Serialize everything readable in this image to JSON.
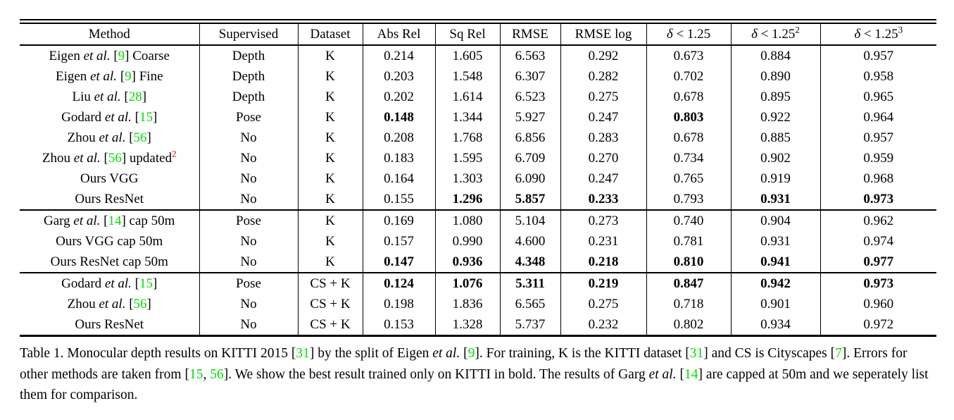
{
  "colors": {
    "background": "#ffffff",
    "text": "#000000",
    "rule": "#000000",
    "citation_green": "#00dd00",
    "footnote_red": "#ee0000"
  },
  "table": {
    "columns": [
      {
        "segments": [
          {
            "text": "Method"
          }
        ]
      },
      {
        "segments": [
          {
            "text": "Supervised"
          }
        ]
      },
      {
        "segments": [
          {
            "text": "Dataset"
          }
        ]
      },
      {
        "segments": [
          {
            "text": "Abs Rel"
          }
        ]
      },
      {
        "segments": [
          {
            "text": "Sq Rel"
          }
        ]
      },
      {
        "segments": [
          {
            "text": "RMSE"
          }
        ]
      },
      {
        "segments": [
          {
            "text": "RMSE log"
          }
        ]
      },
      {
        "segments": [
          {
            "text": "δ",
            "italic": true
          },
          {
            "text": " < 1.25"
          }
        ]
      },
      {
        "segments": [
          {
            "text": "δ",
            "italic": true
          },
          {
            "text": " < 1.25"
          },
          {
            "text": "2",
            "sup": true
          }
        ]
      },
      {
        "segments": [
          {
            "text": "δ",
            "italic": true
          },
          {
            "text": " < 1.25"
          },
          {
            "text": "3",
            "sup": true
          }
        ]
      }
    ],
    "sections": [
      {
        "rows": [
          {
            "method": [
              {
                "text": "Eigen "
              },
              {
                "text": "et al.",
                "italic": true
              },
              {
                "text": " ["
              },
              {
                "text": "9",
                "cite": true
              },
              {
                "text": "] Coarse"
              }
            ],
            "supervised": "Depth",
            "dataset": "K",
            "values": [
              "0.214",
              "1.605",
              "6.563",
              "0.292",
              "0.673",
              "0.884",
              "0.957"
            ],
            "bold": [
              false,
              false,
              false,
              false,
              false,
              false,
              false
            ]
          },
          {
            "method": [
              {
                "text": "Eigen "
              },
              {
                "text": "et al.",
                "italic": true
              },
              {
                "text": " ["
              },
              {
                "text": "9",
                "cite": true
              },
              {
                "text": "] Fine"
              }
            ],
            "supervised": "Depth",
            "dataset": "K",
            "values": [
              "0.203",
              "1.548",
              "6.307",
              "0.282",
              "0.702",
              "0.890",
              "0.958"
            ],
            "bold": [
              false,
              false,
              false,
              false,
              false,
              false,
              false
            ]
          },
          {
            "method": [
              {
                "text": "Liu "
              },
              {
                "text": "et al.",
                "italic": true
              },
              {
                "text": " ["
              },
              {
                "text": "28",
                "cite": true
              },
              {
                "text": "]"
              }
            ],
            "supervised": "Depth",
            "dataset": "K",
            "values": [
              "0.202",
              "1.614",
              "6.523",
              "0.275",
              "0.678",
              "0.895",
              "0.965"
            ],
            "bold": [
              false,
              false,
              false,
              false,
              false,
              false,
              false
            ]
          },
          {
            "method": [
              {
                "text": "Godard "
              },
              {
                "text": "et al.",
                "italic": true
              },
              {
                "text": " ["
              },
              {
                "text": "15",
                "cite": true
              },
              {
                "text": "]"
              }
            ],
            "supervised": "Pose",
            "dataset": "K",
            "values": [
              "0.148",
              "1.344",
              "5.927",
              "0.247",
              "0.803",
              "0.922",
              "0.964"
            ],
            "bold": [
              true,
              false,
              false,
              false,
              true,
              false,
              false
            ]
          },
          {
            "method": [
              {
                "text": "Zhou "
              },
              {
                "text": "et al.",
                "italic": true
              },
              {
                "text": " ["
              },
              {
                "text": "56",
                "cite": true
              },
              {
                "text": "]"
              }
            ],
            "supervised": "No",
            "dataset": "K",
            "values": [
              "0.208",
              "1.768",
              "6.856",
              "0.283",
              "0.678",
              "0.885",
              "0.957"
            ],
            "bold": [
              false,
              false,
              false,
              false,
              false,
              false,
              false
            ]
          },
          {
            "method": [
              {
                "text": "Zhou "
              },
              {
                "text": "et al.",
                "italic": true
              },
              {
                "text": " ["
              },
              {
                "text": "56",
                "cite": true
              },
              {
                "text": "] updated"
              },
              {
                "text": "2",
                "sup": true,
                "red": true
              }
            ],
            "supervised": "No",
            "dataset": "K",
            "values": [
              "0.183",
              "1.595",
              "6.709",
              "0.270",
              "0.734",
              "0.902",
              "0.959"
            ],
            "bold": [
              false,
              false,
              false,
              false,
              false,
              false,
              false
            ]
          },
          {
            "method": [
              {
                "text": "Ours VGG"
              }
            ],
            "supervised": "No",
            "dataset": "K",
            "values": [
              "0.164",
              "1.303",
              "6.090",
              "0.247",
              "0.765",
              "0.919",
              "0.968"
            ],
            "bold": [
              false,
              false,
              false,
              false,
              false,
              false,
              false
            ]
          },
          {
            "method": [
              {
                "text": "Ours ResNet"
              }
            ],
            "supervised": "No",
            "dataset": "K",
            "values": [
              "0.155",
              "1.296",
              "5.857",
              "0.233",
              "0.793",
              "0.931",
              "0.973"
            ],
            "bold": [
              false,
              true,
              true,
              true,
              false,
              true,
              true
            ]
          }
        ]
      },
      {
        "rows": [
          {
            "method": [
              {
                "text": "Garg "
              },
              {
                "text": "et al.",
                "italic": true
              },
              {
                "text": " ["
              },
              {
                "text": "14",
                "cite": true
              },
              {
                "text": "] cap 50m"
              }
            ],
            "supervised": "Pose",
            "dataset": "K",
            "values": [
              "0.169",
              "1.080",
              "5.104",
              "0.273",
              "0.740",
              "0.904",
              "0.962"
            ],
            "bold": [
              false,
              false,
              false,
              false,
              false,
              false,
              false
            ]
          },
          {
            "method": [
              {
                "text": "Ours VGG cap 50m"
              }
            ],
            "supervised": "No",
            "dataset": "K",
            "values": [
              "0.157",
              "0.990",
              "4.600",
              "0.231",
              "0.781",
              "0.931",
              "0.974"
            ],
            "bold": [
              false,
              false,
              false,
              false,
              false,
              false,
              false
            ]
          },
          {
            "method": [
              {
                "text": "Ours ResNet cap 50m"
              }
            ],
            "supervised": "No",
            "dataset": "K",
            "values": [
              "0.147",
              "0.936",
              "4.348",
              "0.218",
              "0.810",
              "0.941",
              "0.977"
            ],
            "bold": [
              true,
              true,
              true,
              true,
              true,
              true,
              true
            ]
          }
        ]
      },
      {
        "rows": [
          {
            "method": [
              {
                "text": "Godard "
              },
              {
                "text": "et al.",
                "italic": true
              },
              {
                "text": " ["
              },
              {
                "text": "15",
                "cite": true
              },
              {
                "text": "]"
              }
            ],
            "supervised": "Pose",
            "dataset": "CS + K",
            "values": [
              "0.124",
              "1.076",
              "5.311",
              "0.219",
              "0.847",
              "0.942",
              "0.973"
            ],
            "bold": [
              true,
              true,
              true,
              true,
              true,
              true,
              true
            ]
          },
          {
            "method": [
              {
                "text": "Zhou "
              },
              {
                "text": "et al.",
                "italic": true
              },
              {
                "text": " ["
              },
              {
                "text": "56",
                "cite": true
              },
              {
                "text": "]"
              }
            ],
            "supervised": "No",
            "dataset": "CS + K",
            "values": [
              "0.198",
              "1.836",
              "6.565",
              "0.275",
              "0.718",
              "0.901",
              "0.960"
            ],
            "bold": [
              false,
              false,
              false,
              false,
              false,
              false,
              false
            ]
          },
          {
            "method": [
              {
                "text": "Ours ResNet"
              }
            ],
            "supervised": "No",
            "dataset": "CS + K",
            "values": [
              "0.153",
              "1.328",
              "5.737",
              "0.232",
              "0.802",
              "0.934",
              "0.972"
            ],
            "bold": [
              false,
              false,
              false,
              false,
              false,
              false,
              false
            ]
          }
        ]
      }
    ]
  },
  "caption": {
    "segments": [
      {
        "text": "Table 1. Monocular depth results on KITTI 2015 ["
      },
      {
        "text": "31",
        "cite": true
      },
      {
        "text": "] by the split of Eigen "
      },
      {
        "text": "et al.",
        "italic": true
      },
      {
        "text": " ["
      },
      {
        "text": "9",
        "cite": true
      },
      {
        "text": "]. For training, K is the KITTI dataset ["
      },
      {
        "text": "31",
        "cite": true
      },
      {
        "text": "] and CS is Cityscapes ["
      },
      {
        "text": "7",
        "cite": true
      },
      {
        "text": "]. Errors for other methods are taken from ["
      },
      {
        "text": "15",
        "cite": true
      },
      {
        "text": ", "
      },
      {
        "text": "56",
        "cite": true
      },
      {
        "text": "]. We show the best result trained only on KITTI in bold. The results of Garg "
      },
      {
        "text": "et al.",
        "italic": true
      },
      {
        "text": " ["
      },
      {
        "text": "14",
        "cite": true
      },
      {
        "text": "] are capped at 50m and we seperately list them for comparison."
      }
    ]
  }
}
